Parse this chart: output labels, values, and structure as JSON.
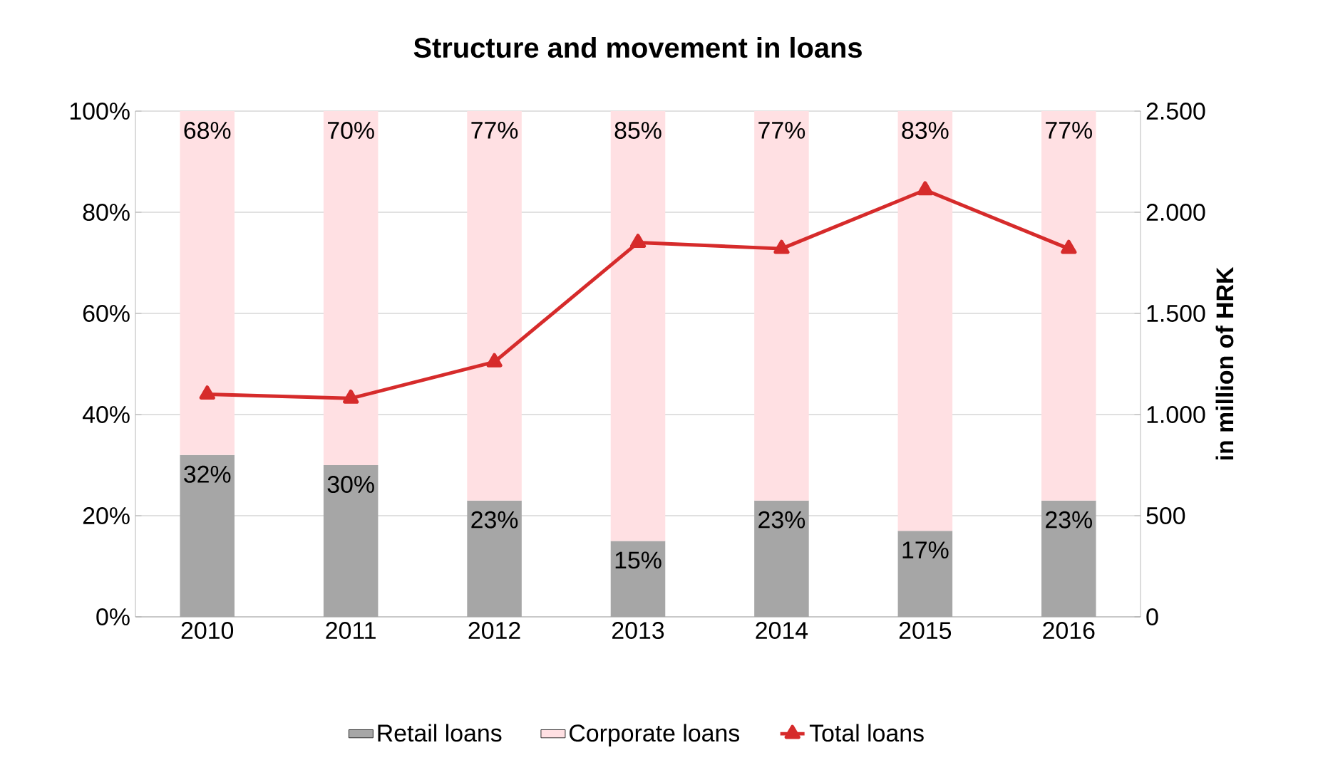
{
  "chart_data": {
    "type": "bar",
    "stacked": true,
    "title": "Structure and movement in loans",
    "y2label": "in million of HRK",
    "categories": [
      "2010",
      "2011",
      "2012",
      "2013",
      "2014",
      "2015",
      "2016"
    ],
    "series": [
      {
        "name": "Retail loans",
        "color": "#a6a6a6",
        "values": [
          32,
          30,
          23,
          15,
          23,
          17,
          23
        ],
        "value_labels": [
          "32%",
          "30%",
          "23%",
          "15%",
          "23%",
          "17%",
          "23%"
        ]
      },
      {
        "name": "Corporate loans",
        "color": "#ffe0e3",
        "values": [
          68,
          70,
          77,
          85,
          77,
          83,
          77
        ],
        "value_labels": [
          "68%",
          "70%",
          "77%",
          "85%",
          "77%",
          "83%",
          "77%"
        ]
      },
      {
        "name": "Total loans",
        "type": "line",
        "axis": "y2",
        "color": "#d62b2b",
        "marker": "triangle",
        "values": [
          1100,
          1080,
          1260,
          1850,
          1820,
          2110,
          1820
        ]
      }
    ],
    "ylim": [
      0,
      100
    ],
    "yticks": [
      {
        "value": 0,
        "label": "0%"
      },
      {
        "value": 20,
        "label": "20%"
      },
      {
        "value": 40,
        "label": "40%"
      },
      {
        "value": 60,
        "label": "60%"
      },
      {
        "value": 80,
        "label": "80%"
      },
      {
        "value": 100,
        "label": "100%"
      }
    ],
    "y2lim": [
      0,
      2500
    ],
    "y2ticks": [
      0,
      500,
      {
        "value": 1000,
        "label": "1.000"
      },
      {
        "value": 1500,
        "label": "1.500"
      },
      {
        "value": 2000,
        "label": "2.000"
      },
      {
        "value": 2500,
        "label": "2.500"
      }
    ],
    "grid": "y",
    "legend": "bottom"
  }
}
